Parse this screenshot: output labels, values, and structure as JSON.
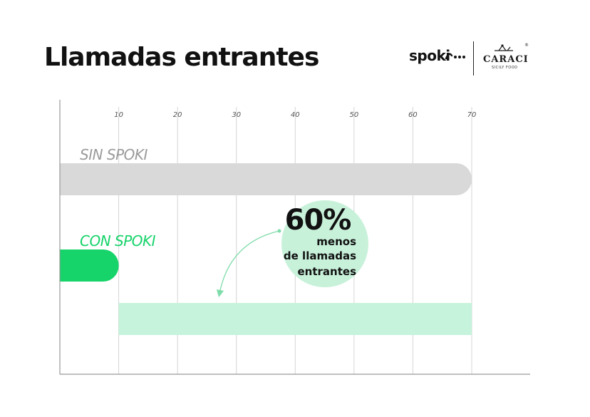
{
  "header": {
    "title": "Llamadas entrantes"
  },
  "logos": {
    "spoki": "spoki",
    "caraci": "CARACI",
    "caraci_sub": "SICILY FOOD",
    "registered": "®"
  },
  "chart_data": {
    "type": "bar",
    "orientation": "horizontal",
    "title": "Llamadas entrantes",
    "xlabel": "",
    "ylabel": "",
    "xlim": [
      0,
      70
    ],
    "x_ticks": [
      10,
      20,
      30,
      40,
      50,
      60,
      70
    ],
    "grid": true,
    "categories": [
      "SIN SPOKI",
      "CON SPOKI"
    ],
    "values": [
      70,
      10
    ],
    "reduction": {
      "from": 10,
      "to": 70,
      "percent_label": "60%",
      "text_lines": [
        "menos",
        "de llamadas",
        "entrantes"
      ]
    },
    "colors": {
      "sin_spoki_bar": "#d9d9d9",
      "sin_spoki_label": "#9a9a9a",
      "con_spoki_bar": "#16d36a",
      "con_spoki_label": "#16d36a",
      "reduction_band": "#c6f3db",
      "reduction_circle": "#c8f1da",
      "arrow": "#7fdcaa",
      "grid": "#d4d4d4",
      "axis": "#999999",
      "tick_label": "#555555"
    }
  }
}
